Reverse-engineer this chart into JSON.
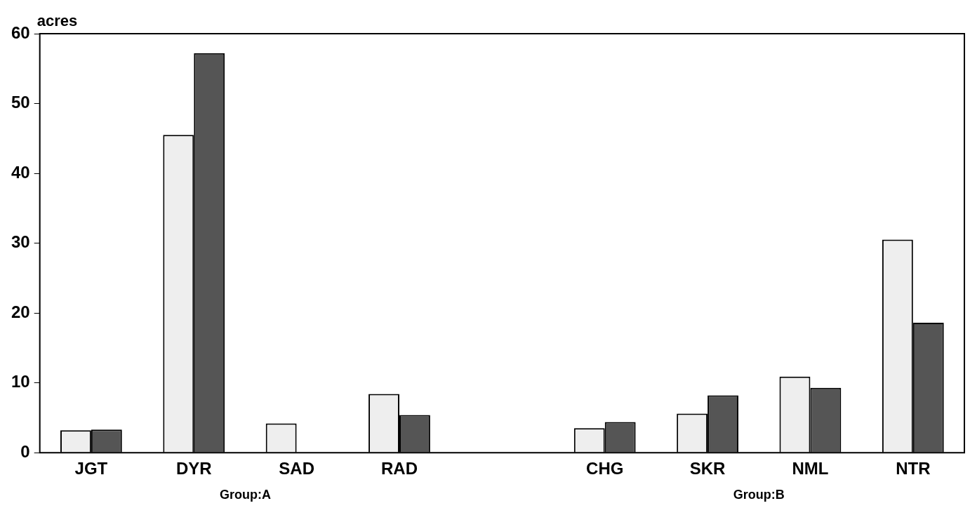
{
  "chart_data": {
    "type": "bar",
    "ylabel": "acres",
    "categories": [
      "JGT",
      "DYR",
      "SAD",
      "RAD",
      null,
      "CHG",
      "SKR",
      "NML",
      "NTR"
    ],
    "series": [
      {
        "color": "#eeeeee",
        "values": [
          3.2,
          45.5,
          4.2,
          8.4,
          null,
          3.5,
          5.6,
          10.9,
          30.5
        ]
      },
      {
        "color": "#555555",
        "values": [
          3.3,
          57.2,
          null,
          5.4,
          null,
          4.4,
          8.2,
          9.3,
          18.6
        ]
      }
    ],
    "ylim": [
      0,
      60
    ],
    "yticks": [
      0,
      10,
      20,
      30,
      40,
      50,
      60
    ],
    "grid": false,
    "legend": false,
    "annotations": [
      "Group:A",
      "Group:B"
    ]
  }
}
